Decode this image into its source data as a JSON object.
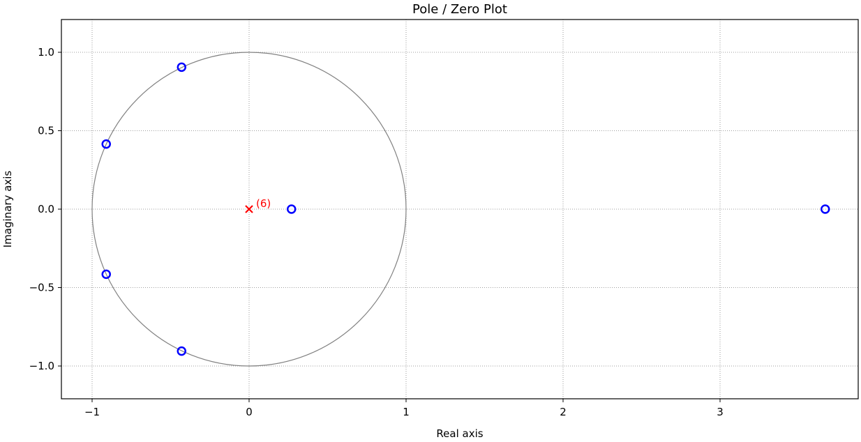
{
  "chart_data": {
    "type": "scatter",
    "title": "Pole / Zero Plot",
    "xlabel": "Real axis",
    "ylabel": "Imaginary axis",
    "xlim": [
      -1.2,
      3.87
    ],
    "ylim": [
      -1.22,
      1.2
    ],
    "xticks": [
      -1,
      0,
      1,
      2,
      3
    ],
    "xtick_labels": [
      "−1",
      "0",
      "1",
      "2",
      "3"
    ],
    "yticks": [
      1.0,
      0.5,
      0.0,
      -0.5,
      -1.0
    ],
    "ytick_labels": [
      "1.0",
      "0.5",
      "0.0",
      "−0.5",
      "−1.0"
    ],
    "grid": true,
    "unit_circle": true,
    "series": [
      {
        "kind": "zeros",
        "marker": "o",
        "color": "#0000ff",
        "points": [
          {
            "x": -0.43,
            "y": 0.905
          },
          {
            "x": -0.91,
            "y": 0.415
          },
          {
            "x": 0.27,
            "y": 0.0
          },
          {
            "x": 3.67,
            "y": 0.0
          },
          {
            "x": -0.91,
            "y": -0.415
          },
          {
            "x": -0.43,
            "y": -0.905
          }
        ]
      },
      {
        "kind": "poles",
        "marker": "x",
        "color": "#ff0000",
        "points": [
          {
            "x": 0.0,
            "y": 0.0
          }
        ]
      }
    ],
    "annotations": [
      {
        "text": "(6)",
        "x": 0.0,
        "y": 0.0,
        "color": "#ff0000"
      }
    ],
    "colors": {
      "zeros": "#0000ff",
      "poles": "#ff0000",
      "unit_circle": "#808080",
      "grid": "#7f7f7f"
    }
  }
}
